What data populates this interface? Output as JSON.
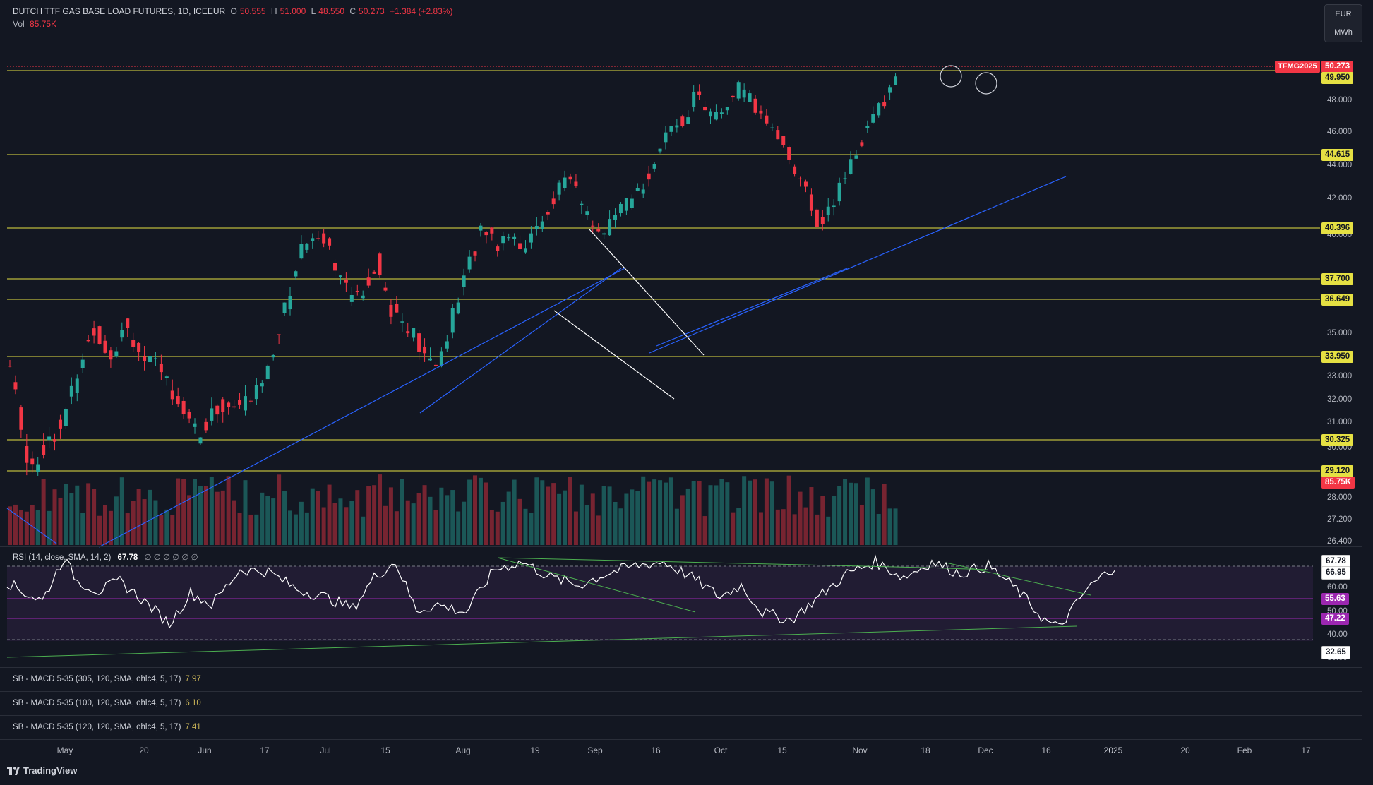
{
  "header": {
    "title": "DUTCH TTF GAS BASE LOAD FUTURES, 1D, ICEEUR",
    "open_label": "O",
    "open": "50.555",
    "high_label": "H",
    "high": "51.000",
    "low_label": "L",
    "low": "48.550",
    "close_label": "C",
    "close": "50.273",
    "change": "+1.384 (+2.83%)",
    "vol_label": "Vol",
    "vol_value": "85.75K"
  },
  "unit_box": {
    "currency": "EUR",
    "unit": "MWh"
  },
  "price_axis": {
    "labels": [
      "48.000",
      "46.000",
      "44.000",
      "42.000",
      "40.000",
      "35.000",
      "33.000",
      "32.000",
      "31.000",
      "30.000",
      "28.000",
      "27.200",
      "26.400"
    ]
  },
  "price_tags": {
    "ticker": "TFMG2025",
    "last": "50.273",
    "volume": "85.75K",
    "levels": [
      "49.950",
      "44.615",
      "40.396",
      "37.700",
      "36.649",
      "33.950",
      "30.325",
      "29.120"
    ]
  },
  "rsi": {
    "label": "RSI (14, close, SMA, 14, 2)",
    "value": "67.78",
    "placeholders": "∅ ∅ ∅ ∅ ∅ ∅",
    "axis_labels": [
      "60.00",
      "50.00",
      "40.00",
      "30.00"
    ],
    "tags": [
      "67.78",
      "66.95",
      "55.63",
      "47.22",
      "32.65"
    ]
  },
  "macd_panes": [
    {
      "label": "SB - MACD 5-35 (305, 120, SMA, ohlc4, 5, 17)",
      "value": "7.97"
    },
    {
      "label": "SB - MACD 5-35 (100, 120, SMA, ohlc4, 5, 17)",
      "value": "6.10"
    },
    {
      "label": "SB - MACD 5-35 (120, 120, SMA, ohlc4, 5, 17)",
      "value": "7.41"
    }
  ],
  "time_axis": [
    "May",
    "20",
    "Jun",
    "17",
    "Jul",
    "15",
    "Aug",
    "19",
    "Sep",
    "16",
    "Oct",
    "15",
    "Nov",
    "18",
    "Dec",
    "16",
    "2025",
    "20",
    "Feb",
    "17"
  ],
  "branding": "TradingView",
  "colors": {
    "bull": "#26a69a",
    "bear": "#f23645",
    "level": "#e5e043",
    "trend": "#2962ff",
    "rsi_band": "#9c27b0"
  }
}
